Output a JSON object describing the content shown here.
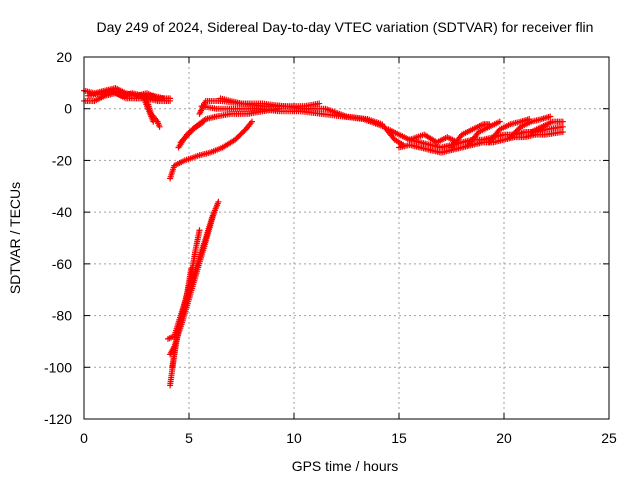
{
  "chart_data": {
    "type": "scatter",
    "title": "Day 249 of 2024, Sidereal Day-to-day VTEC variation (SDTVAR) for receiver flin",
    "xlabel": "GPS time / hours",
    "ylabel": "SDTVAR / TECUs",
    "xlim": [
      0,
      25
    ],
    "ylim": [
      -120,
      20
    ],
    "xticks": [
      0,
      5,
      10,
      15,
      20,
      25
    ],
    "yticks": [
      20,
      0,
      -20,
      -40,
      -60,
      -80,
      -100,
      -120
    ],
    "grid": true,
    "marker": "+",
    "color": "#ff0000",
    "series": [
      {
        "segments": [
          [
            [
              0.0,
              7
            ],
            [
              0.5,
              6
            ],
            [
              1.0,
              7
            ],
            [
              1.5,
              8
            ],
            [
              2.0,
              6
            ],
            [
              2.5,
              5
            ],
            [
              3.0,
              6
            ],
            [
              3.5,
              4
            ],
            [
              4.1,
              4
            ]
          ],
          [
            [
              0.0,
              3
            ],
            [
              0.5,
              3
            ],
            [
              1.0,
              5
            ],
            [
              1.5,
              6
            ],
            [
              2.0,
              4
            ],
            [
              2.5,
              4
            ],
            [
              3.0,
              4
            ],
            [
              3.5,
              3
            ],
            [
              4.1,
              3
            ]
          ],
          [
            [
              0.2,
              5
            ],
            [
              0.8,
              6
            ],
            [
              1.3,
              7
            ],
            [
              1.8,
              5
            ],
            [
              2.3,
              6
            ],
            [
              2.8,
              5
            ],
            [
              3.3,
              5
            ],
            [
              3.8,
              4
            ]
          ],
          [
            [
              3.0,
              3
            ],
            [
              3.2,
              -2
            ],
            [
              3.5,
              -5
            ],
            [
              3.6,
              -7
            ]
          ],
          [
            [
              2.8,
              5
            ],
            [
              3.0,
              1
            ],
            [
              3.2,
              -3
            ],
            [
              3.3,
              -5
            ]
          ],
          [
            [
              4.1,
              -27
            ],
            [
              4.3,
              -22
            ],
            [
              4.8,
              -20
            ],
            [
              5.5,
              -18
            ],
            [
              6.0,
              -17
            ],
            [
              6.6,
              -15
            ],
            [
              7.2,
              -12
            ],
            [
              7.7,
              -8
            ],
            [
              8.0,
              -5
            ]
          ],
          [
            [
              4.5,
              -15
            ],
            [
              4.9,
              -10
            ],
            [
              5.3,
              -7
            ],
            [
              5.8,
              -4
            ],
            [
              6.3,
              -3
            ],
            [
              7.0,
              -2
            ],
            [
              7.8,
              -2
            ],
            [
              8.5,
              -1
            ],
            [
              9.3,
              0
            ]
          ],
          [
            [
              4.6,
              -13
            ],
            [
              5.2,
              -8
            ],
            [
              5.7,
              -5
            ]
          ],
          [
            [
              5.5,
              -2
            ],
            [
              5.8,
              3
            ],
            [
              6.5,
              3
            ],
            [
              7.5,
              2
            ],
            [
              8.5,
              1
            ],
            [
              9.5,
              1
            ],
            [
              10.5,
              0
            ],
            [
              11.5,
              0
            ],
            [
              12.5,
              -3
            ],
            [
              13.5,
              -4
            ],
            [
              14.2,
              -6
            ]
          ],
          [
            [
              5.6,
              1
            ],
            [
              6.3,
              0
            ],
            [
              7.3,
              0
            ],
            [
              8.3,
              0
            ],
            [
              9.3,
              -1
            ],
            [
              10.3,
              -1
            ],
            [
              11.3,
              -2
            ],
            [
              12.3,
              -3
            ],
            [
              13.3,
              -4
            ],
            [
              14.3,
              -7
            ],
            [
              14.8,
              -12
            ],
            [
              15.2,
              -14
            ]
          ],
          [
            [
              6.5,
              4
            ],
            [
              7.5,
              2
            ],
            [
              8.5,
              2
            ],
            [
              9.5,
              1
            ],
            [
              10.5,
              1
            ],
            [
              11.2,
              2
            ]
          ],
          [
            [
              4.1,
              -107
            ],
            [
              4.3,
              -95
            ],
            [
              4.5,
              -85
            ],
            [
              4.8,
              -75
            ],
            [
              5.1,
              -65
            ],
            [
              5.3,
              -55
            ],
            [
              5.5,
              -47
            ]
          ],
          [
            [
              4.2,
              -100
            ],
            [
              4.4,
              -90
            ],
            [
              4.6,
              -82
            ],
            [
              4.9,
              -72
            ],
            [
              5.1,
              -62
            ]
          ],
          [
            [
              4.0,
              -89
            ],
            [
              4.3,
              -88
            ],
            [
              4.6,
              -80
            ],
            [
              5.0,
              -70
            ],
            [
              5.4,
              -60
            ],
            [
              5.8,
              -50
            ],
            [
              6.1,
              -42
            ],
            [
              6.4,
              -36
            ]
          ],
          [
            [
              4.1,
              -95
            ],
            [
              4.3,
              -92
            ],
            [
              4.7,
              -82
            ],
            [
              5.2,
              -68
            ],
            [
              5.7,
              -54
            ],
            [
              6.2,
              -40
            ]
          ],
          [
            [
              14.5,
              -8
            ],
            [
              15.0,
              -10
            ],
            [
              15.5,
              -12
            ],
            [
              16.0,
              -13
            ],
            [
              16.5,
              -14
            ],
            [
              17.0,
              -15
            ],
            [
              17.5,
              -14
            ],
            [
              18.0,
              -13
            ],
            [
              18.5,
              -12
            ],
            [
              19.0,
              -12
            ],
            [
              19.5,
              -11
            ],
            [
              20.0,
              -10
            ],
            [
              20.5,
              -10
            ],
            [
              21.0,
              -9
            ],
            [
              21.5,
              -9
            ],
            [
              22.0,
              -8
            ],
            [
              22.8,
              -7
            ]
          ],
          [
            [
              15.0,
              -15
            ],
            [
              15.5,
              -14
            ],
            [
              16.0,
              -15
            ],
            [
              16.5,
              -16
            ],
            [
              17.0,
              -17
            ],
            [
              17.5,
              -16
            ],
            [
              18.0,
              -15
            ],
            [
              18.5,
              -14
            ],
            [
              19.0,
              -13
            ],
            [
              19.5,
              -13
            ],
            [
              20.0,
              -12
            ],
            [
              20.5,
              -11
            ],
            [
              21.0,
              -11
            ],
            [
              21.5,
              -10
            ],
            [
              22.0,
              -10
            ],
            [
              22.8,
              -9
            ]
          ],
          [
            [
              15.5,
              -12
            ],
            [
              16.2,
              -10
            ],
            [
              16.8,
              -13
            ],
            [
              17.3,
              -11
            ],
            [
              17.8,
              -13
            ]
          ],
          [
            [
              17.5,
              -15
            ],
            [
              18.0,
              -10
            ],
            [
              18.5,
              -8
            ],
            [
              19.0,
              -6
            ],
            [
              19.3,
              -6
            ]
          ],
          [
            [
              18.3,
              -14
            ],
            [
              18.8,
              -9
            ],
            [
              19.3,
              -7
            ],
            [
              19.8,
              -5
            ]
          ],
          [
            [
              19.3,
              -13
            ],
            [
              19.8,
              -8
            ],
            [
              20.3,
              -6
            ],
            [
              20.8,
              -5
            ],
            [
              21.2,
              -4
            ]
          ],
          [
            [
              20.3,
              -11
            ],
            [
              20.8,
              -7
            ],
            [
              21.3,
              -5
            ],
            [
              21.8,
              -4
            ],
            [
              22.2,
              -3
            ]
          ],
          [
            [
              21.3,
              -9
            ],
            [
              21.8,
              -7
            ],
            [
              22.3,
              -5
            ],
            [
              22.8,
              -5
            ]
          ]
        ]
      }
    ]
  }
}
